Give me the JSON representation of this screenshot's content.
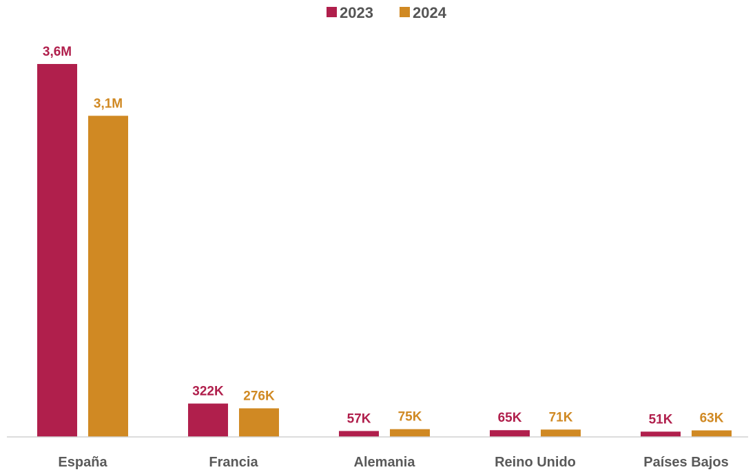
{
  "chart_data": {
    "type": "bar",
    "categories": [
      "España",
      "Francia",
      "Alemania",
      "Reino Unido",
      "Países Bajos"
    ],
    "series": [
      {
        "name": "2023",
        "color": "#B01F4C",
        "values": [
          3600000,
          322000,
          57000,
          65000,
          51000
        ],
        "labels": [
          "3,6M",
          "322K",
          "57K",
          "65K",
          "51K"
        ]
      },
      {
        "name": "2024",
        "color": "#D08923",
        "values": [
          3100000,
          276000,
          75000,
          71000,
          63000
        ],
        "labels": [
          "3,1M",
          "276K",
          "75K",
          "71K",
          "63K"
        ]
      }
    ],
    "ylim": [
      0,
      3600000
    ],
    "grid": false,
    "legend_position": "top-center"
  }
}
